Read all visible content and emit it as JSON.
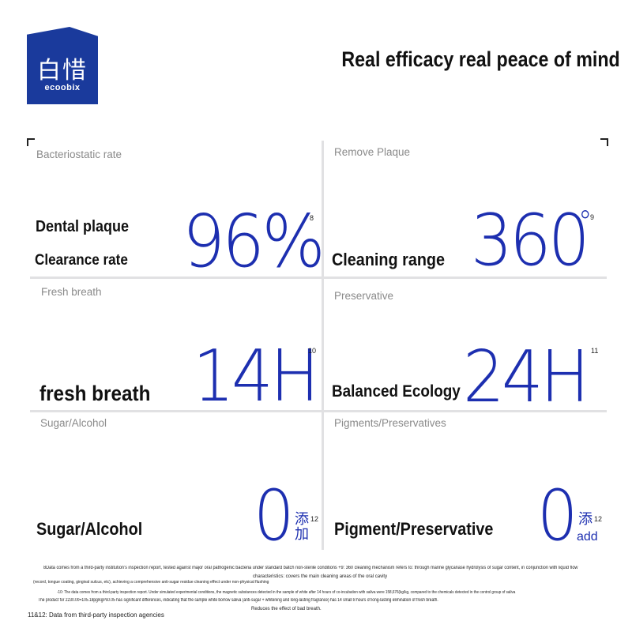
{
  "brand": {
    "name_cn": "白惜",
    "name_en": "ecoobix"
  },
  "headline": "Real efficacy real peace of mind",
  "cells": [
    {
      "subtitle": "Bacteriostatic rate",
      "labels": [
        "Dental plaque",
        "Clearance rate"
      ],
      "value": "96%",
      "footnote": "8"
    },
    {
      "subtitle": "Remove Plaque",
      "labels": [
        "Cleaning range"
      ],
      "value": "360",
      "degree": "°",
      "footnote": "9"
    },
    {
      "subtitle": "Fresh breath",
      "labels": [
        "fresh breath"
      ],
      "value": "14H",
      "footnote": "10"
    },
    {
      "subtitle": "Preservative",
      "labels": [
        "Balanced Ecology"
      ],
      "value": "24H",
      "footnote": "11"
    },
    {
      "subtitle": "Sugar/Alcohol",
      "labels": [
        "Sugar/Alcohol"
      ],
      "value": "0",
      "cn": "添\n加",
      "footnote": "12"
    },
    {
      "subtitle": "Pigments/Preservatives",
      "labels": [
        "Pigment/Preservative"
      ],
      "value": "0",
      "cn": "添",
      "cn_en": "add",
      "footnote": "12"
    }
  ],
  "notes": [
    "8Data comes from a third-party institution's inspection report, tested against major oral pathogenic bacteria under standard batch non-sterile conditions +9: 360 cleaning mechanism refers to: through marine glycanase hydrolysis of sugar content, in conjunction with liquid flow",
    "characteristics: covers the main cleaning areas of the oral cavity",
    "(record, tongue coating, gingival sulcus, etc), achieving a comprehensive anti-sugar residue cleaning effect under non-physical flushing",
    "-10: The data comes from a third-party inspection report. Under simulated experimental conditions, the magnetic substances detected in the sample of white after 14 hours of co-incubation with saliva were 158,676(kg/kg, compared to the chemicals detected in the control group of saliva",
    "The product for 2230.00=105.18pg/kgPs0.05 has significant differences, indicating that the sample white borrow saliva (anti-sugar + whitening and long-lasting fragrance) has 14 small 8 hours of long-lasting elimination of fresh breath.",
    "11&12: Data from third-party inspection agencies",
    "Reduces the effect of bad breath."
  ]
}
